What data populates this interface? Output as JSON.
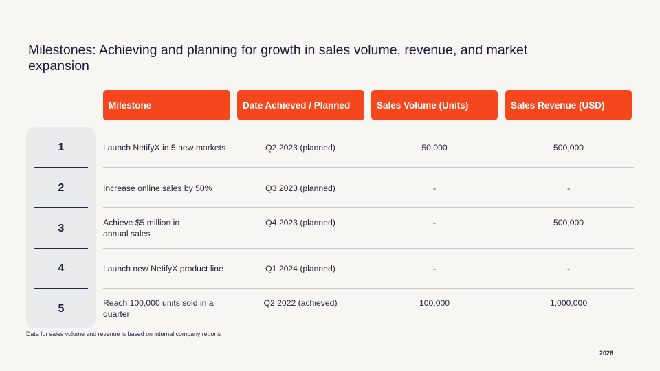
{
  "slide": {
    "title": "Milestones: Achieving and planning for growth in sales volume, revenue, and market expansion",
    "footnote": "Data for sales volume and revenue is based on internal company reports",
    "year": "2026"
  },
  "table": {
    "headers": [
      "Milestone",
      "Date Achieved / Planned",
      "Sales Volume (Units)",
      "Sales Revenue (USD)"
    ],
    "rows": [
      {
        "num": "1",
        "milestone": "Launch NetifyX in 5 new markets",
        "date": "Q2 2023 (planned)",
        "volume": "50,000",
        "revenue": "500,000"
      },
      {
        "num": "2",
        "milestone": "Increase online sales by 50%",
        "date": "Q3 2023 (planned)",
        "volume": "-",
        "revenue": "-"
      },
      {
        "num": "3",
        "milestone": "Achieve $5 million in annual sales",
        "date": "Q4 2023 (planned)",
        "volume": "-",
        "revenue": "500,000"
      },
      {
        "num": "4",
        "milestone": "Launch new NetifyX product line",
        "date": "Q1 2024 (planned)",
        "volume": "-",
        "revenue": "-"
      },
      {
        "num": "5",
        "milestone": "Reach 100,000 units sold in a quarter",
        "date": "Q2 2022 (achieved)",
        "volume": "100,000",
        "revenue": "1,000,000"
      }
    ]
  },
  "colors": {
    "accent": "#f4471e",
    "background": "#f8f6f2",
    "text": "#1b2340"
  }
}
